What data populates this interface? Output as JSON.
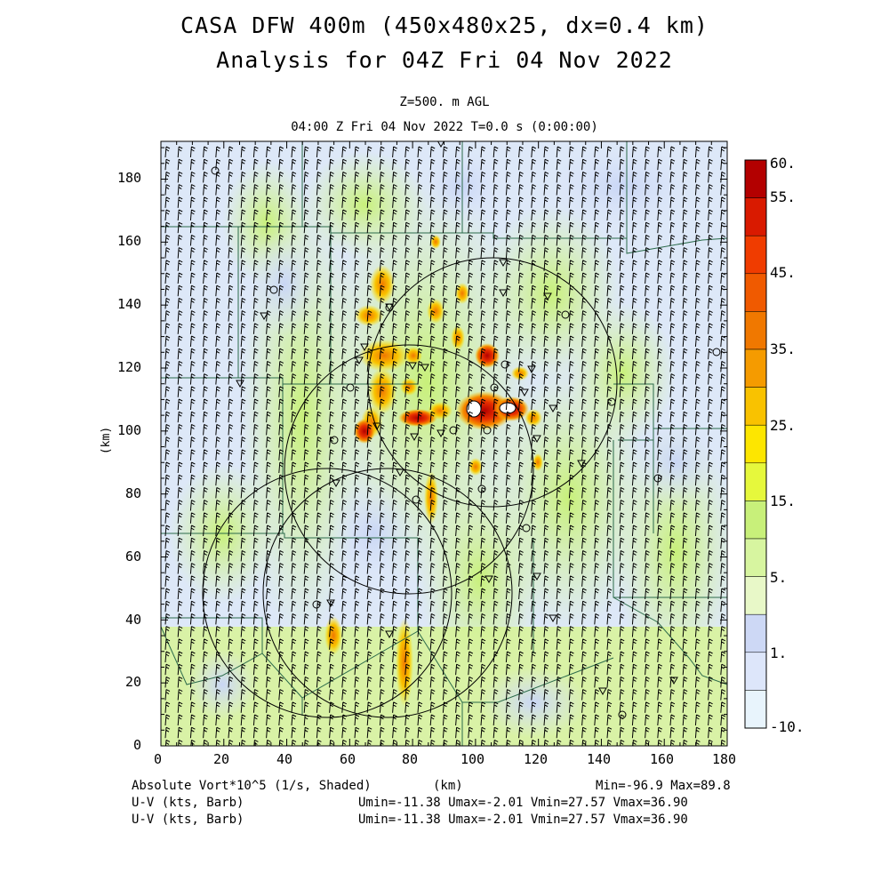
{
  "title": {
    "line1": "CASA DFW 400m (450x480x25, dx=0.4 km)",
    "line2": "Analysis for 04Z Fri 04 Nov 2022"
  },
  "level": "Z=500. m AGL",
  "timestamp": "04:00 Z Fri 04 Nov 2022    T=0.0 s (0:00:00)",
  "axes": {
    "x_ticks": [
      "0",
      "20",
      "40",
      "60",
      "80",
      "100",
      "120",
      "140",
      "160",
      "180"
    ],
    "y_ticks": [
      "0",
      "20",
      "40",
      "60",
      "80",
      "100",
      "120",
      "140",
      "160",
      "180"
    ],
    "x_label": "(km)",
    "y_label": "(km)",
    "x_range": [
      0,
      180
    ],
    "y_range": [
      0,
      192
    ]
  },
  "colorbar": {
    "labels": [
      "60.",
      "55.",
      "45.",
      "35.",
      "25.",
      "15.",
      "5.",
      "1.",
      "-10."
    ],
    "colors": [
      "#b30000",
      "#d91a00",
      "#f03c00",
      "#f05a00",
      "#f07800",
      "#f59b00",
      "#f9c200",
      "#fde600",
      "#e6f83c",
      "#c8f07a",
      "#d7f5a0",
      "#e8f8c8",
      "#cdd8f5",
      "#dde6fa",
      "#e8f4fc"
    ]
  },
  "footer": {
    "field": "Absolute Vort*10^5 (1/s, Shaded)",
    "units": "(km)",
    "minmax": "Min=-96.9 Max=89.8",
    "uv1_label": "U-V (kts, Barb)",
    "uv1_stats": "Umin=-11.38 Umax=-2.01 Vmin=27.57 Vmax=36.90",
    "uv2_label": "U-V (kts, Barb)",
    "uv2_stats": "Umin=-11.38 Umax=-2.01 Vmin=27.57 Vmax=36.90"
  },
  "stats": {
    "min": -96.9,
    "max": 89.8,
    "umin": -11.38,
    "umax": -2.01,
    "vmin": 27.57,
    "vmax": 36.9
  }
}
